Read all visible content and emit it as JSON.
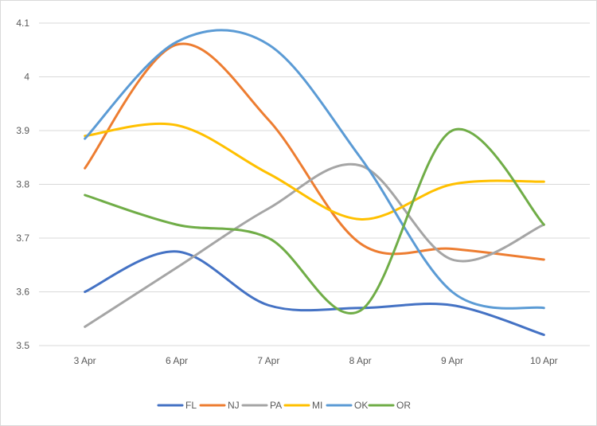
{
  "chart_data": {
    "type": "line",
    "title": "",
    "xlabel": "",
    "ylabel": "",
    "categories": [
      "3 Apr",
      "6 Apr",
      "7 Apr",
      "8 Apr",
      "9 Apr",
      "10 Apr"
    ],
    "ylim": [
      3.5,
      4.1
    ],
    "yticks": [
      "3.5",
      "3.6",
      "3.7",
      "3.8",
      "3.9",
      "4",
      "4.1"
    ],
    "grid": "horizontal",
    "smooth": true,
    "legend_position": "bottom",
    "series": [
      {
        "name": "FL",
        "color": "#4472C4",
        "values": [
          3.6,
          3.675,
          3.575,
          3.57,
          3.575,
          3.52
        ]
      },
      {
        "name": "NJ",
        "color": "#ED7D31",
        "values": [
          3.83,
          4.06,
          3.92,
          3.69,
          3.68,
          3.66
        ]
      },
      {
        "name": "PA",
        "color": "#A5A5A5",
        "values": [
          3.535,
          3.645,
          3.755,
          3.835,
          3.66,
          3.725
        ]
      },
      {
        "name": "MI",
        "color": "#FFC000",
        "values": [
          3.89,
          3.91,
          3.82,
          3.735,
          3.8,
          3.805
        ]
      },
      {
        "name": "OK",
        "color": "#5B9BD5",
        "values": [
          3.885,
          4.065,
          4.06,
          3.85,
          3.6,
          3.57
        ]
      },
      {
        "name": "OR",
        "color": "#70AD47",
        "values": [
          3.78,
          3.725,
          3.7,
          3.565,
          3.9,
          3.725
        ]
      }
    ]
  }
}
